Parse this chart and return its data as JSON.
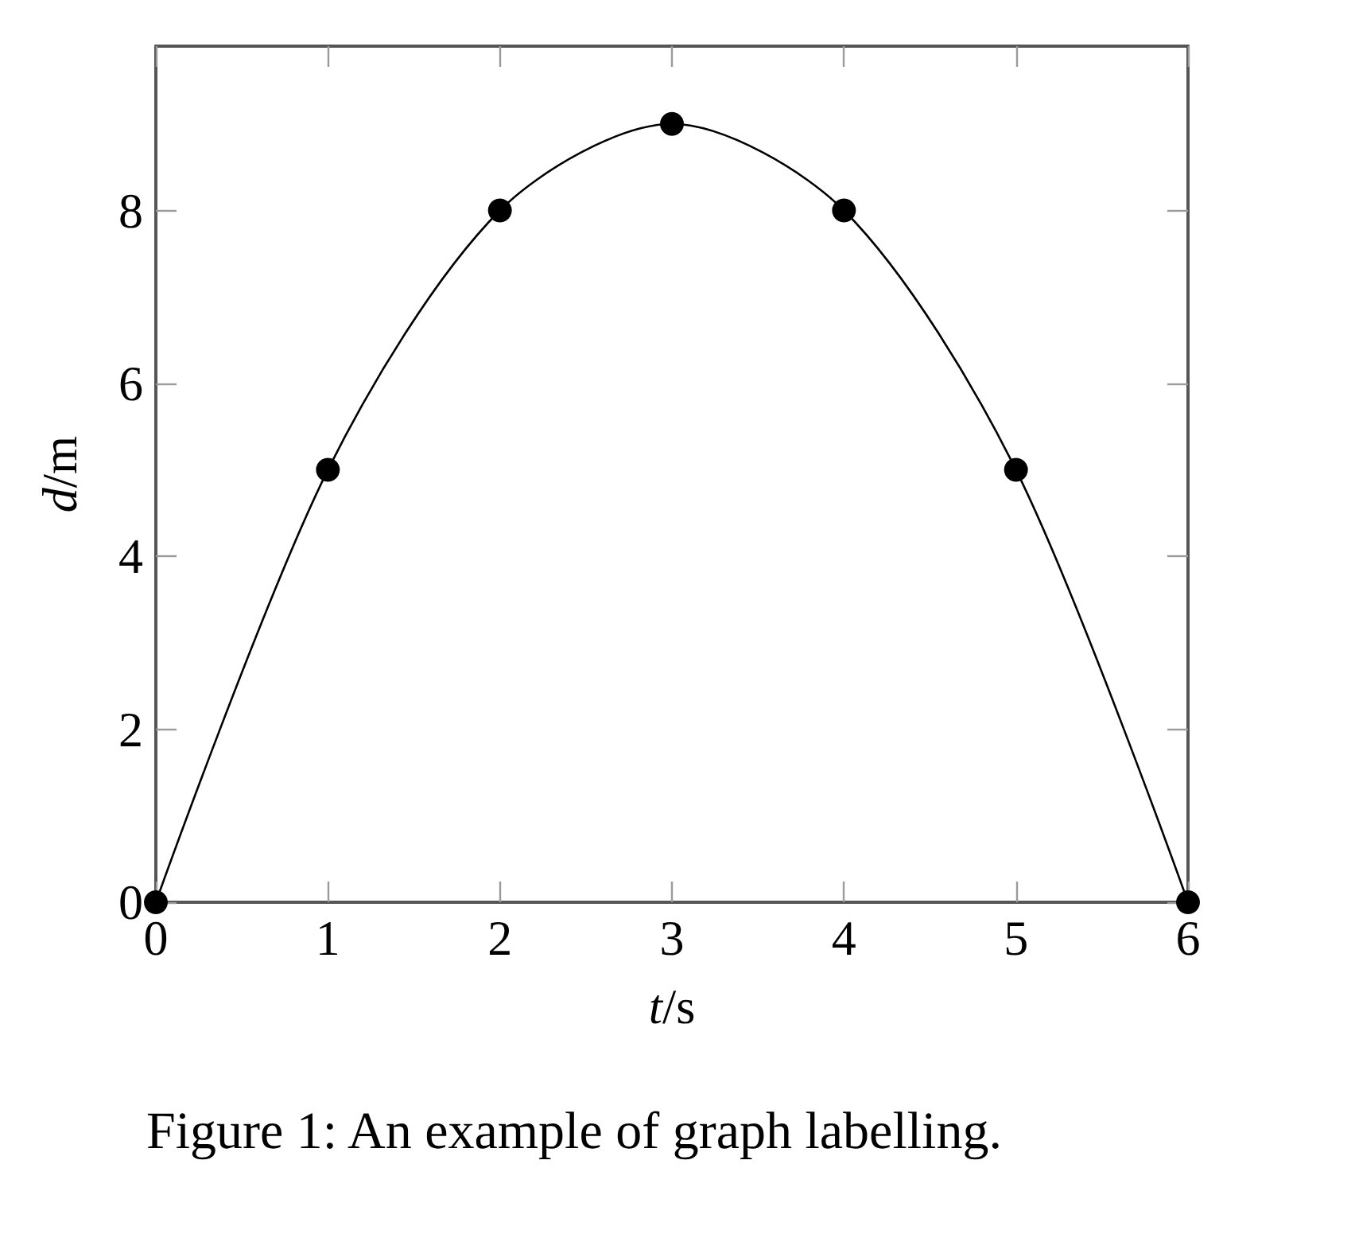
{
  "chart_data": {
    "type": "line",
    "xlabel": "t/s",
    "ylabel": "d/m",
    "x": [
      0,
      1,
      2,
      3,
      4,
      5,
      6
    ],
    "series": [
      {
        "color": "#000000",
        "values": [
          0,
          5,
          8,
          9,
          8,
          5,
          0
        ]
      }
    ],
    "xlim": [
      0,
      6
    ],
    "ylim": [
      0,
      9.9
    ],
    "xticks": [
      0,
      1,
      2,
      3,
      4,
      5,
      6
    ],
    "yticks": [
      0,
      2,
      4,
      6,
      8
    ],
    "marker": "circle",
    "line_style": "solid",
    "grid": false,
    "annotations": [
      "Figure 1: An example of graph labelling."
    ]
  }
}
